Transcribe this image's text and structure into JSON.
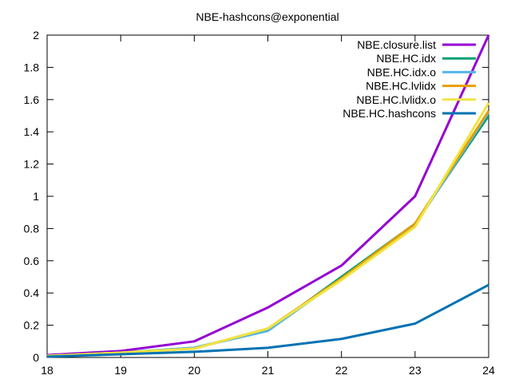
{
  "chart_data": {
    "type": "line",
    "title": "NBE-hashcons@exponential",
    "xlabel": "",
    "ylabel": "",
    "x": [
      18,
      19,
      20,
      21,
      22,
      23,
      24
    ],
    "xlim": [
      18,
      24
    ],
    "ylim": [
      0,
      2
    ],
    "x_ticks": [
      "18",
      "19",
      "20",
      "21",
      "22",
      "23",
      "24"
    ],
    "y_ticks": [
      "0",
      "0.2",
      "0.4",
      "0.6",
      "0.8",
      "1",
      "1.2",
      "1.4",
      "1.6",
      "1.8",
      "2"
    ],
    "grid": false,
    "legend_position": "top-right",
    "series": [
      {
        "name": "NBE.closure.list",
        "color": "#9400d3",
        "values": [
          0.015,
          0.04,
          0.1,
          0.31,
          0.57,
          1.0,
          2.0
        ]
      },
      {
        "name": "NBE.HC.idx",
        "color": "#009e73",
        "values": [
          0.01,
          0.03,
          0.06,
          0.17,
          0.5,
          0.83,
          1.5
        ]
      },
      {
        "name": "NBE.HC.idx.o",
        "color": "#56b4e9",
        "values": [
          0.01,
          0.03,
          0.06,
          0.165,
          0.49,
          0.82,
          1.52
        ]
      },
      {
        "name": "NBE.HC.lvlidx",
        "color": "#e69f00",
        "values": [
          0.01,
          0.03,
          0.055,
          0.18,
          0.49,
          0.83,
          1.53
        ]
      },
      {
        "name": "NBE.HC.lvlidx.o",
        "color": "#f0e442",
        "values": [
          0.01,
          0.03,
          0.055,
          0.18,
          0.48,
          0.81,
          1.58
        ]
      },
      {
        "name": "NBE.HC.hashcons",
        "color": "#0072b2",
        "values": [
          0.005,
          0.02,
          0.035,
          0.06,
          0.115,
          0.21,
          0.45
        ]
      }
    ]
  }
}
